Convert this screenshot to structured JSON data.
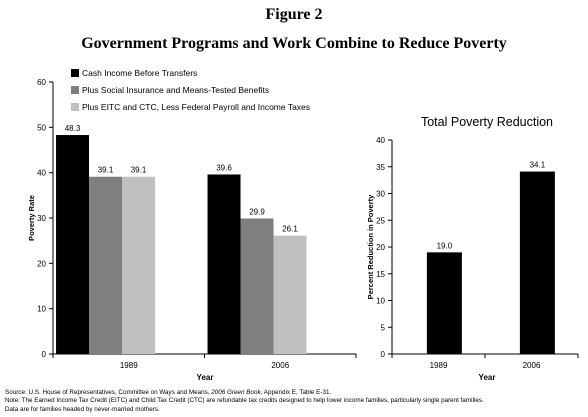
{
  "figure_label": "Figure 2",
  "figure_title": "Government Programs and Work Combine to Reduce Poverty",
  "notes": {
    "source_prefix": "Source: U.S. House of Representatives, Committee on Ways and Means, ",
    "source_italic": "2006 Green Book",
    "source_suffix": ", Appendix E, Table E-31.",
    "note": "Note: The Earned Income Tax Credit (EITC) and Child Tax Credit (CTC) are refundable tax credits designed to help lower income families, particularly single parent families.",
    "data_note": "Data are for families headed by never-married mothers."
  },
  "colors": {
    "black": "#000000",
    "gray": "#7f7f7f",
    "light_gray": "#c0c0c0"
  },
  "chart_data": [
    {
      "type": "bar",
      "title": "",
      "xlabel": "Year",
      "ylabel": "Poverty Rate",
      "categories": [
        "1989",
        "2006"
      ],
      "ylim": [
        0,
        60
      ],
      "yticks": [
        0,
        10,
        20,
        30,
        40,
        50,
        60
      ],
      "legend_position": "top-left",
      "series": [
        {
          "name": "Cash Income Before Transfers",
          "values": [
            48.3,
            39.6
          ],
          "labels": [
            "48.3",
            "39.6"
          ],
          "color": "#000000"
        },
        {
          "name": "Plus Social Insurance and Means-Tested Benefits",
          "values": [
            39.1,
            29.9
          ],
          "labels": [
            "39.1",
            "29.9"
          ],
          "color": "#7f7f7f"
        },
        {
          "name": "Plus EITC and CTC, Less Federal Payroll and Income Taxes",
          "values": [
            39.1,
            26.1
          ],
          "labels": [
            "39.1",
            "26.1"
          ],
          "color": "#c0c0c0"
        }
      ]
    },
    {
      "type": "bar",
      "title": "Total Poverty Reduction",
      "xlabel": "Year",
      "ylabel": "Percent Reduction in Poverty",
      "categories": [
        "1989",
        "2006"
      ],
      "ylim": [
        0,
        40
      ],
      "yticks": [
        0,
        5,
        10,
        15,
        20,
        25,
        30,
        35,
        40
      ],
      "series": [
        {
          "values": [
            19.0,
            34.1
          ],
          "labels": [
            "19.0",
            "34.1"
          ],
          "color": "#000000"
        }
      ]
    }
  ]
}
